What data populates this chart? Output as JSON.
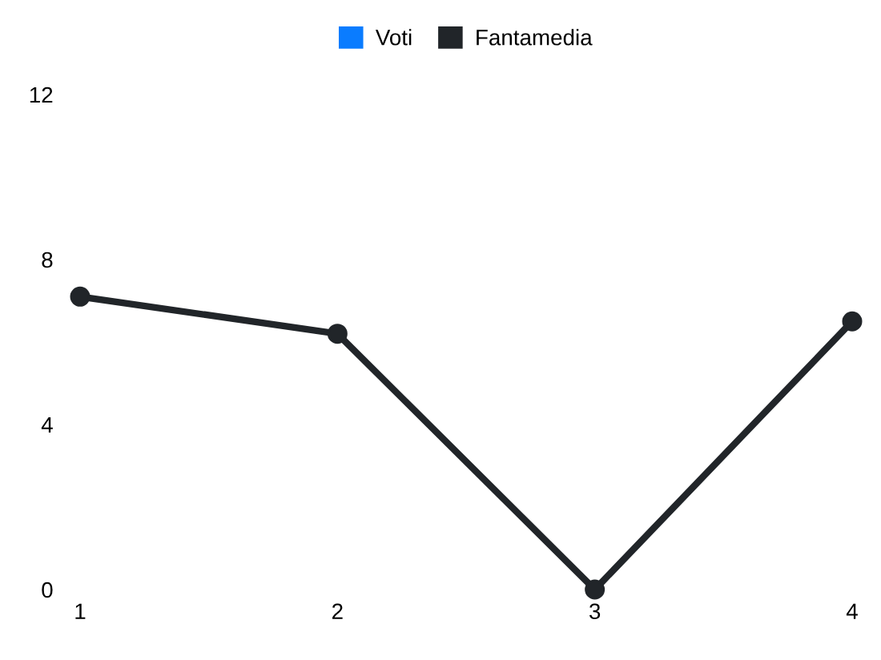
{
  "chart_data": {
    "type": "line",
    "categories": [
      "1",
      "2",
      "3",
      "4"
    ],
    "series": [
      {
        "name": "Voti",
        "color": "#0a7cff",
        "values": [
          null,
          null,
          null,
          null
        ]
      },
      {
        "name": "Fantamedia",
        "color": "#212529",
        "values": [
          7.1,
          6.2,
          0,
          6.5
        ]
      }
    ],
    "ylim": [
      0,
      12
    ],
    "yticks": [
      0,
      4,
      8,
      12
    ],
    "grid": false,
    "legend": "top",
    "marker": "circle",
    "line_style": "solid"
  }
}
